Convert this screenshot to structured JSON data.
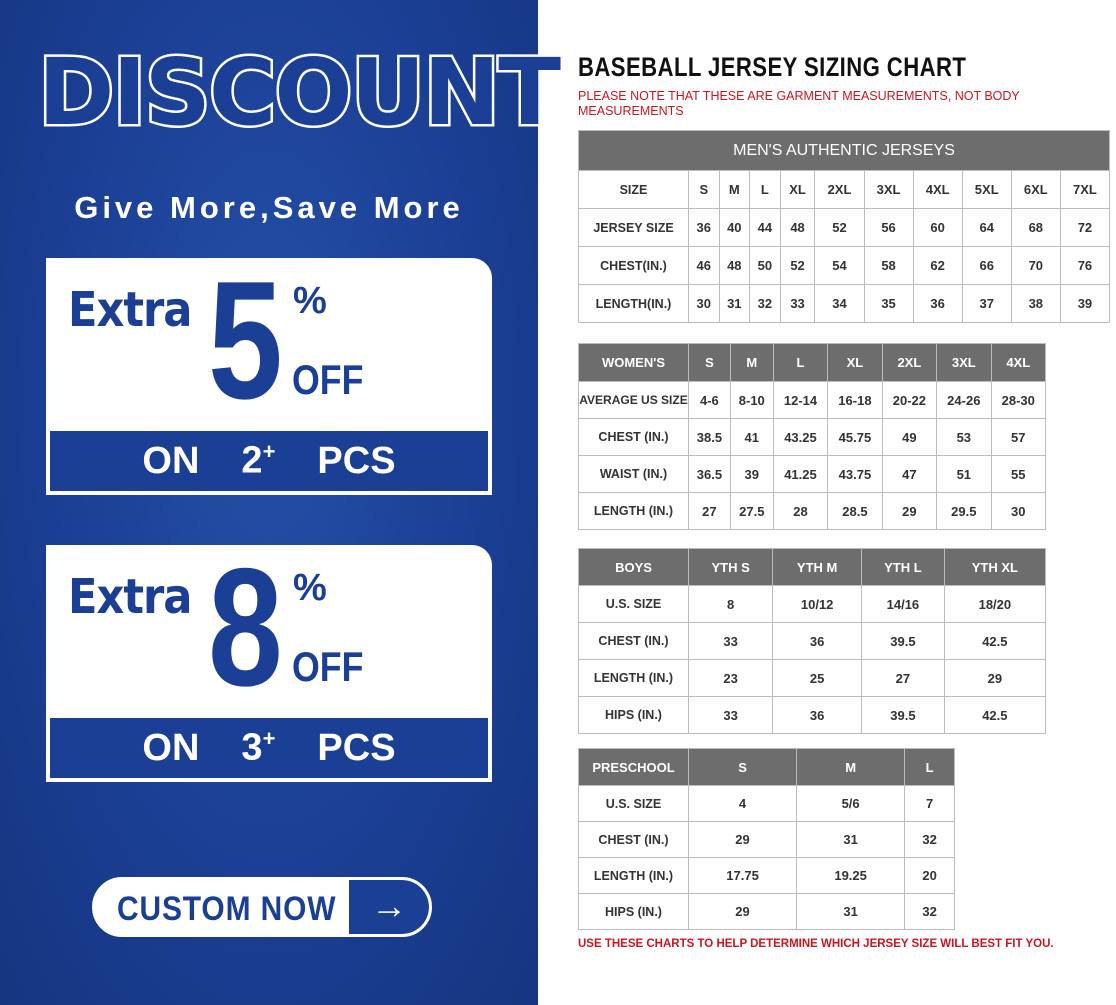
{
  "promo": {
    "headline": "DISCOUNT",
    "tagline": "Give More,Save More",
    "offers": [
      {
        "extra": "Extra",
        "percent": "5",
        "pct_sign": "%",
        "off": "OFF",
        "on": "ON",
        "qty": "2",
        "plus": "+",
        "unit": "PCS"
      },
      {
        "extra": "Extra",
        "percent": "8",
        "pct_sign": "%",
        "off": "OFF",
        "on": "ON",
        "qty": "3",
        "plus": "+",
        "unit": "PCS"
      }
    ],
    "button": {
      "label": "CUSTOM NOW",
      "icon": "arrow-right-icon",
      "arrow": "→"
    },
    "colors": {
      "brand_blue": "#1b3f94",
      "white": "#ffffff"
    }
  },
  "chart": {
    "title": "BASEBALL JERSEY SIZING CHART",
    "note": "PLEASE NOTE THAT THESE ARE GARMENT MEASUREMENTS, NOT BODY MEASUREMENTS",
    "footer": "USE THESE CHARTS TO HELP DETERMINE WHICH JERSEY SIZE WILL BEST FIT YOU.",
    "colors": {
      "header_gray": "#6d6d6d",
      "note_red": "#d0141e"
    },
    "mens": {
      "caption": "MEN'S AUTHENTIC JERSEYS",
      "header": [
        "SIZE",
        "S",
        "M",
        "L",
        "XL",
        "2XL",
        "3XL",
        "4XL",
        "5XL",
        "6XL",
        "7XL"
      ],
      "rows": [
        [
          "JERSEY SIZE",
          "36",
          "40",
          "44",
          "48",
          "52",
          "56",
          "60",
          "64",
          "68",
          "72"
        ],
        [
          "CHEST(IN.)",
          "46",
          "48",
          "50",
          "52",
          "54",
          "58",
          "62",
          "66",
          "70",
          "76"
        ],
        [
          "LENGTH(IN.)",
          "30",
          "31",
          "32",
          "33",
          "34",
          "35",
          "36",
          "37",
          "38",
          "39"
        ]
      ]
    },
    "womens": {
      "header": [
        "WOMEN'S",
        "S",
        "M",
        "L",
        "XL",
        "2XL",
        "3XL",
        "4XL"
      ],
      "rows": [
        [
          "AVERAGE US SIZE",
          "4-6",
          "8-10",
          "12-14",
          "16-18",
          "20-22",
          "24-26",
          "28-30"
        ],
        [
          "CHEST (IN.)",
          "38.5",
          "41",
          "43.25",
          "45.75",
          "49",
          "53",
          "57"
        ],
        [
          "WAIST (IN.)",
          "36.5",
          "39",
          "41.25",
          "43.75",
          "47",
          "51",
          "55"
        ],
        [
          "LENGTH (IN.)",
          "27",
          "27.5",
          "28",
          "28.5",
          "29",
          "29.5",
          "30"
        ]
      ]
    },
    "boys": {
      "header": [
        "BOYS",
        "YTH S",
        "YTH M",
        "YTH L",
        "YTH XL"
      ],
      "rows": [
        [
          "U.S. SIZE",
          "8",
          "10/12",
          "14/16",
          "18/20"
        ],
        [
          "CHEST (IN.)",
          "33",
          "36",
          "39.5",
          "42.5"
        ],
        [
          "LENGTH (IN.)",
          "23",
          "25",
          "27",
          "29"
        ],
        [
          "HIPS (IN.)",
          "33",
          "36",
          "39.5",
          "42.5"
        ]
      ]
    },
    "preschool": {
      "header": [
        "PRESCHOOL",
        "S",
        "M",
        "L"
      ],
      "rows": [
        [
          "U.S. SIZE",
          "4",
          "5/6",
          "7"
        ],
        [
          "CHEST (IN.)",
          "29",
          "31",
          "32"
        ],
        [
          "LENGTH (IN.)",
          "17.75",
          "19.25",
          "20"
        ],
        [
          "HIPS (IN.)",
          "29",
          "31",
          "32"
        ]
      ]
    }
  }
}
